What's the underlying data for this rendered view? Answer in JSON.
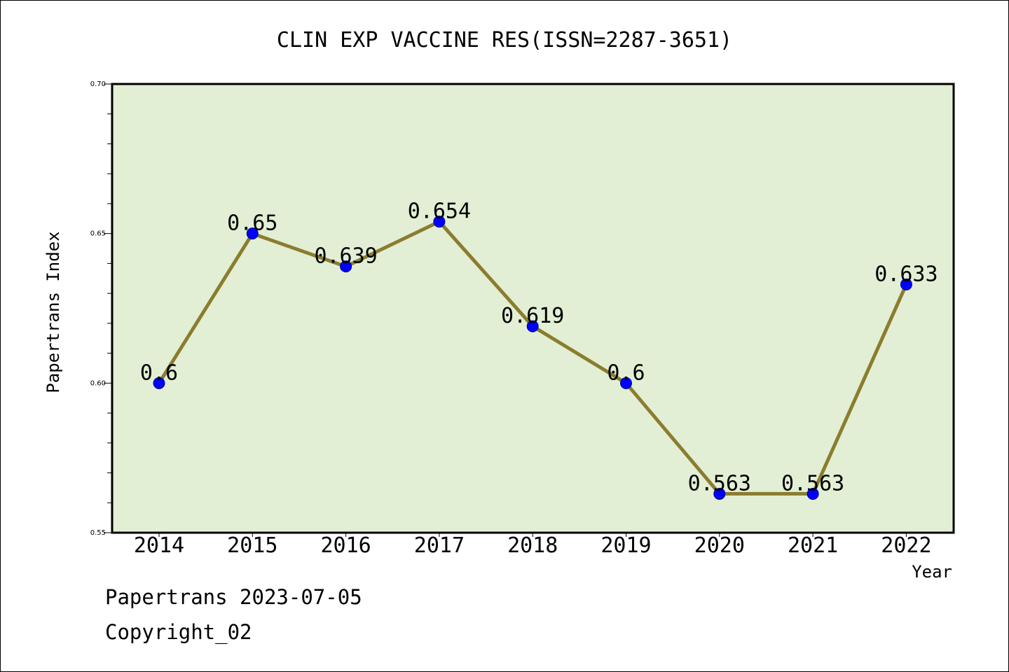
{
  "chart_data": {
    "type": "line",
    "title": "CLIN EXP VACCINE RES(ISSN=2287-3651)",
    "xlabel": "Year",
    "ylabel": "Papertrans Index",
    "categories": [
      "2014",
      "2015",
      "2016",
      "2017",
      "2018",
      "2019",
      "2020",
      "2021",
      "2022"
    ],
    "values": [
      0.6,
      0.65,
      0.639,
      0.654,
      0.619,
      0.6,
      0.563,
      0.563,
      0.633
    ],
    "data_labels": [
      "0.6",
      "0.65",
      "0.639",
      "0.654",
      "0.619",
      "0.6",
      "0.563",
      "0.563",
      "0.633"
    ],
    "ylim": [
      0.55,
      0.7
    ],
    "yticks": [
      "0.55",
      "0.60",
      "0.65",
      "0.70"
    ],
    "grid": false,
    "colors": {
      "plot_background": "#e2efd5",
      "line": "#8b7d2e",
      "marker": "#0000ff"
    }
  },
  "footer": {
    "line1": "Papertrans 2023-07-05",
    "line2": "Copyright_02"
  }
}
